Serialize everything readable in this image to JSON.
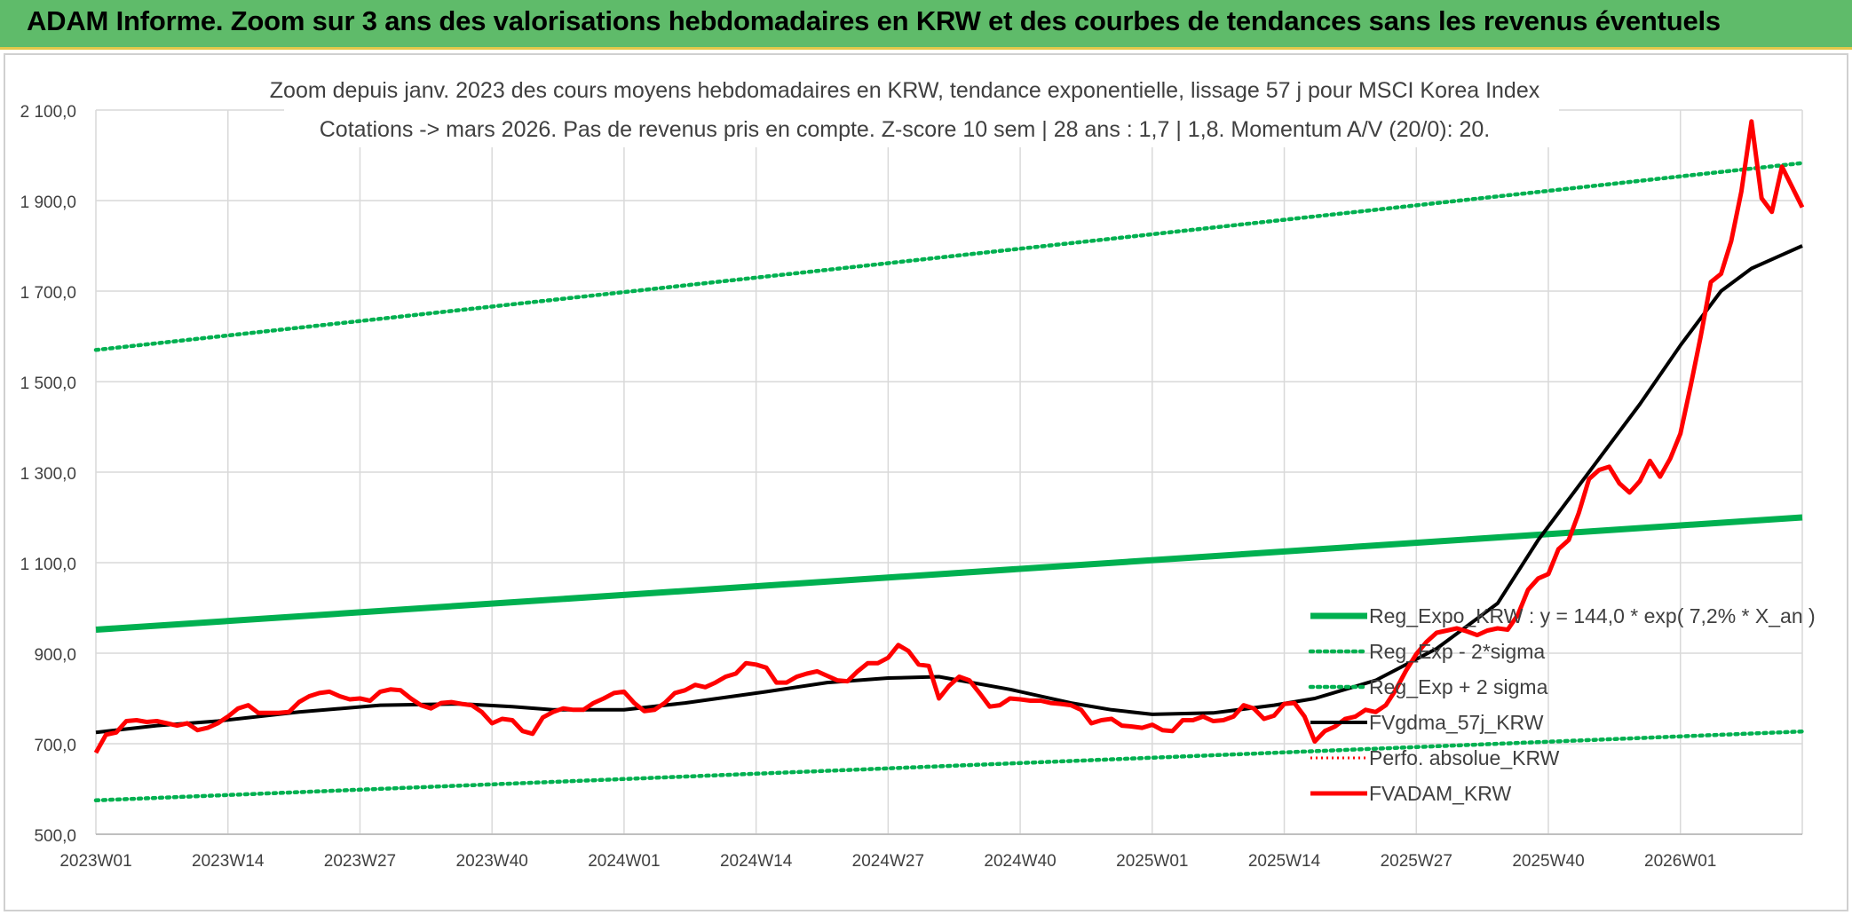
{
  "page_title": "ADAM Informe. Zoom sur 3 ans des valorisations hebdomadaires en KRW et des courbes de tendances sans les revenus éventuels",
  "chart_data": {
    "type": "line",
    "title_line1": "Zoom depuis janv. 2023 des cours moyens hebdomadaires en KRW, tendance exponentielle, lissage 57 j pour MSCI Korea Index",
    "title_line2": "Cotations -> mars 2026. Pas de revenus pris en compte. Z-score 10 sem | 28 ans : 1,7 | 1,8. Momentum A/V (20/0): 20.",
    "ylim": [
      500,
      2100
    ],
    "y_ticks": [
      500,
      700,
      900,
      1100,
      1300,
      1500,
      1700,
      1900,
      2100
    ],
    "y_tick_labels": [
      "500,0",
      "700,0",
      "900,0",
      "1 100,0",
      "1 300,0",
      "1 500,0",
      "1 700,0",
      "1 900,0",
      "2 100,0"
    ],
    "x_tick_labels": [
      "2023W01",
      "2023W14",
      "2023W27",
      "2023W40",
      "2024W01",
      "2024W14",
      "2024W27",
      "2024W40",
      "2025W01",
      "2025W14",
      "2025W27",
      "2025W40",
      "2026W01"
    ],
    "grid": true,
    "legend_position": "right",
    "colors": {
      "reg_expo": "#00b050",
      "bands": "#00b050",
      "fvgdma": "#000000",
      "perfo": "#ff0000",
      "fvadam": "#ff0000",
      "grid": "#d9d9d9",
      "axis": "#bfbfbf"
    },
    "series": [
      {
        "name": "Reg_Expo_KRW : y = 144,0 * exp( 7,2% *  X_an )",
        "style": "solid-thick",
        "x_weeks": [
          0,
          168
        ],
        "values": [
          952,
          1200
        ]
      },
      {
        "name": "Reg_Exp - 2*sigma",
        "style": "dotted",
        "x_weeks": [
          0,
          168
        ],
        "values": [
          575,
          727
        ]
      },
      {
        "name": "Reg_Exp + 2 sigma",
        "style": "dotted",
        "x_weeks": [
          0,
          168
        ],
        "values": [
          1570,
          1983
        ]
      },
      {
        "name": "FVgdma_57j_KRW",
        "style": "solid",
        "x_weeks": [
          0,
          6,
          12,
          20,
          28,
          36,
          41,
          45,
          52,
          58,
          66,
          72,
          78,
          83,
          90,
          96,
          100,
          104,
          110,
          116,
          120,
          126,
          132,
          138,
          142,
          146,
          152,
          156,
          160,
          163,
          166,
          168
        ],
        "values": [
          725,
          740,
          750,
          770,
          785,
          788,
          782,
          775,
          775,
          790,
          815,
          835,
          845,
          848,
          820,
          790,
          775,
          765,
          768,
          785,
          800,
          840,
          910,
          1010,
          1150,
          1270,
          1450,
          1580,
          1700,
          1750,
          1780,
          1800
        ]
      },
      {
        "name": "Perfo. absolue_KRW",
        "style": "dotted-legend-only",
        "x_weeks": [],
        "values": []
      },
      {
        "name": "FVADAM_KRW",
        "style": "solid-thick",
        "x_weeks": [
          0,
          1,
          2,
          3,
          4,
          5,
          6,
          7,
          8,
          9,
          10,
          11,
          12,
          13,
          14,
          15,
          16,
          17,
          18,
          19,
          20,
          21,
          22,
          23,
          24,
          25,
          26,
          27,
          28,
          29,
          30,
          31,
          32,
          33,
          34,
          35,
          36,
          37,
          38,
          39,
          40,
          41,
          42,
          43,
          44,
          45,
          46,
          47,
          48,
          49,
          50,
          51,
          52,
          53,
          54,
          55,
          56,
          57,
          58,
          59,
          60,
          61,
          62,
          63,
          64,
          65,
          66,
          67,
          68,
          69,
          70,
          71,
          72,
          73,
          74,
          75,
          76,
          77,
          78,
          79,
          80,
          81,
          82,
          83,
          84,
          85,
          86,
          87,
          88,
          89,
          90,
          91,
          92,
          93,
          94,
          95,
          96,
          97,
          98,
          99,
          100,
          101,
          102,
          103,
          104,
          105,
          106,
          107,
          108,
          109,
          110,
          111,
          112,
          113,
          114,
          115,
          116,
          117,
          118,
          119,
          120,
          121,
          122,
          123,
          124,
          125,
          126,
          127,
          128,
          129,
          130,
          131,
          132,
          133,
          134,
          135,
          136,
          137,
          138,
          139,
          140,
          141,
          142,
          143,
          144,
          145,
          146,
          147,
          148,
          149,
          150,
          151,
          152,
          153,
          154,
          155,
          156,
          157,
          158,
          159,
          160,
          161,
          162,
          163,
          164,
          165,
          166,
          167,
          168
        ],
        "values": [
          680,
          720,
          725,
          750,
          752,
          748,
          750,
          745,
          740,
          745,
          730,
          735,
          745,
          760,
          778,
          785,
          768,
          768,
          768,
          770,
          792,
          805,
          812,
          815,
          805,
          798,
          800,
          795,
          815,
          820,
          818,
          800,
          785,
          778,
          790,
          792,
          788,
          785,
          770,
          745,
          755,
          752,
          728,
          722,
          758,
          770,
          778,
          775,
          775,
          790,
          800,
          812,
          815,
          790,
          772,
          775,
          790,
          812,
          818,
          830,
          825,
          835,
          848,
          855,
          878,
          875,
          868,
          835,
          835,
          848,
          855,
          860,
          850,
          840,
          838,
          860,
          878,
          878,
          890,
          918,
          905,
          875,
          872,
          800,
          828,
          848,
          840,
          812,
          782,
          785,
          800,
          798,
          795,
          795,
          790,
          788,
          785,
          775,
          745,
          752,
          755,
          740,
          738,
          735,
          742,
          730,
          728,
          752,
          752,
          760,
          750,
          752,
          760,
          785,
          778,
          755,
          762,
          788,
          790,
          760,
          705,
          728,
          738,
          755,
          760,
          775,
          770,
          785,
          820,
          862,
          898,
          925,
          945,
          950,
          955,
          948,
          940,
          950,
          955,
          952,
          985,
          1040,
          1065,
          1075,
          1130,
          1150,
          1210,
          1285,
          1305,
          1312,
          1275,
          1255,
          1280,
          1325,
          1290,
          1330,
          1385,
          1490,
          1600,
          1720,
          1738,
          1810,
          1920,
          2075,
          1905,
          1875,
          1975,
          1930,
          1885
        ]
      }
    ]
  }
}
